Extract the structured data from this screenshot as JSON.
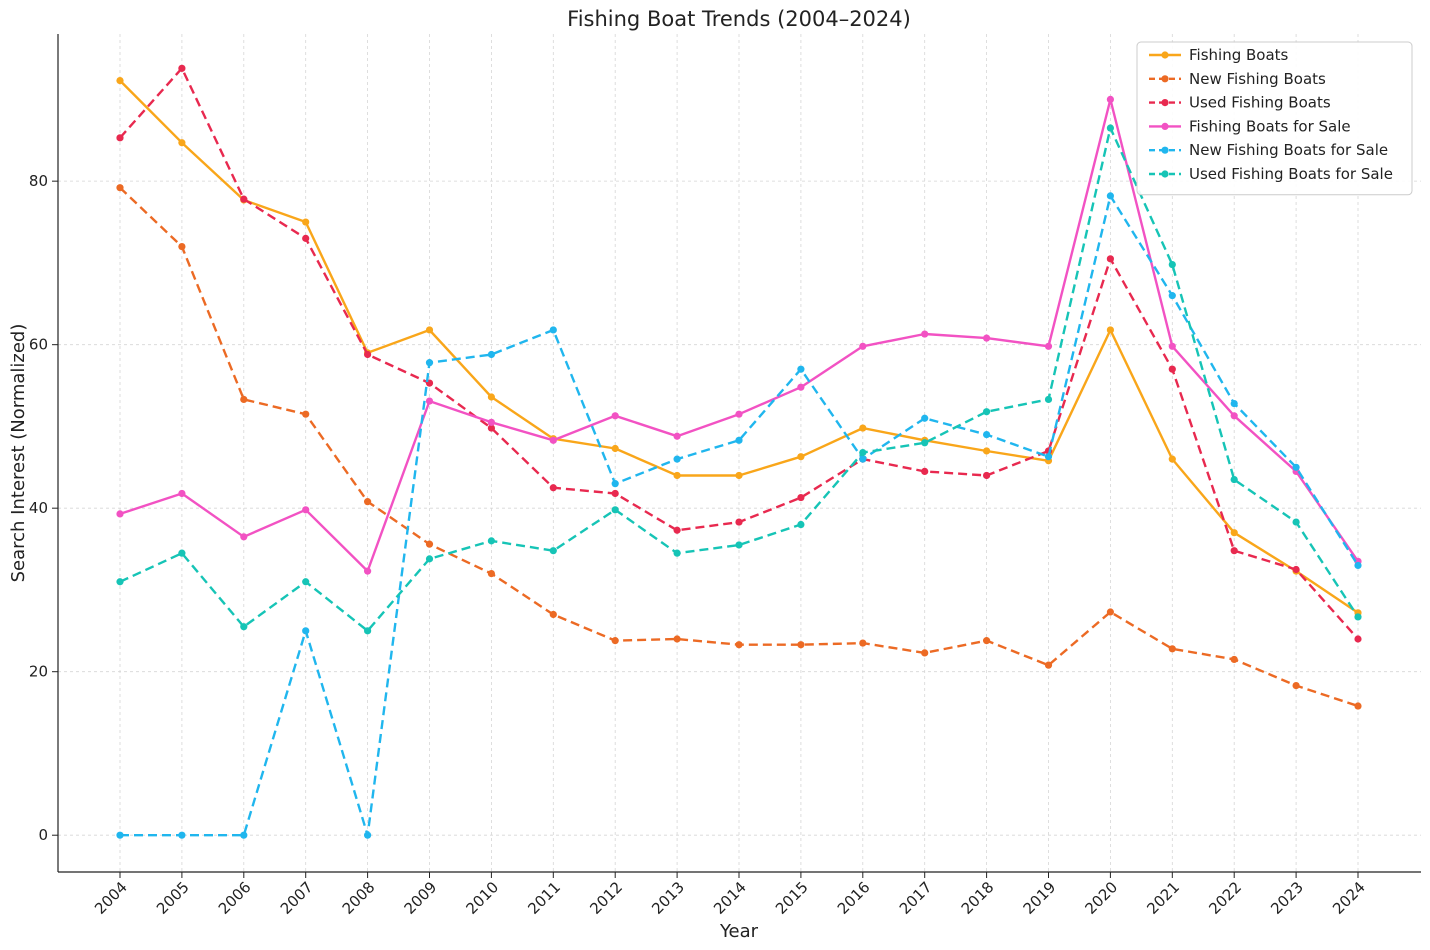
{
  "chart_data": {
    "type": "line",
    "title": "Fishing Boat Trends (2004–2024)",
    "xlabel": "Year",
    "ylabel": "Search Interest (Normalized)",
    "x": [
      "2004",
      "2005",
      "2006",
      "2007",
      "2008",
      "2009",
      "2010",
      "2011",
      "2012",
      "2013",
      "2014",
      "2015",
      "2016",
      "2017",
      "2018",
      "2019",
      "2020",
      "2021",
      "2022",
      "2023",
      "2024"
    ],
    "ylim": [
      -4.5,
      98
    ],
    "yticks": [
      0,
      20,
      40,
      60,
      80
    ],
    "grid": true,
    "legend_position": "top-right",
    "series": [
      {
        "name": "Fishing Boats",
        "color": "#f9a61a",
        "dashed": false,
        "values": [
          92.3,
          84.7,
          77.7,
          75,
          59,
          61.8,
          53.6,
          48.5,
          47.3,
          44,
          44,
          46.3,
          49.8,
          48.3,
          47,
          45.8,
          61.8,
          46,
          37,
          32.3,
          27.2
        ]
      },
      {
        "name": "New Fishing Boats",
        "color": "#ec6a24",
        "dashed": true,
        "values": [
          79.2,
          72,
          53.3,
          51.5,
          40.8,
          35.6,
          32,
          27,
          23.8,
          24,
          23.3,
          23.3,
          23.5,
          22.3,
          23.8,
          20.8,
          27.3,
          22.8,
          21.5,
          18.3,
          15.8
        ]
      },
      {
        "name": "Used Fishing Boats",
        "color": "#e8294f",
        "dashed": true,
        "values": [
          85.3,
          93.8,
          77.8,
          73,
          58.8,
          55.3,
          49.8,
          42.5,
          41.8,
          37.3,
          38.3,
          41.3,
          46,
          44.5,
          44,
          47,
          70.5,
          57,
          34.8,
          32.5,
          24
        ]
      },
      {
        "name": "Fishing Boats for Sale",
        "color": "#f252c3",
        "dashed": false,
        "values": [
          39.3,
          41.8,
          36.5,
          39.8,
          32.3,
          53.1,
          50.5,
          48.3,
          51.3,
          48.8,
          51.5,
          54.8,
          59.8,
          61.3,
          60.8,
          59.8,
          90,
          59.8,
          51.3,
          44.5,
          33.5
        ]
      },
      {
        "name": "New Fishing Boats for Sale",
        "color": "#20b6ee",
        "dashed": true,
        "values": [
          0,
          0,
          0,
          25,
          0,
          57.8,
          58.8,
          61.8,
          43,
          46,
          48.3,
          57,
          46,
          51,
          49,
          46.3,
          78.2,
          66,
          52.8,
          45,
          33
        ]
      },
      {
        "name": "Used Fishing Boats for Sale",
        "color": "#16c4b6",
        "dashed": true,
        "values": [
          31,
          34.5,
          25.5,
          31,
          25,
          33.8,
          36,
          34.8,
          39.8,
          34.5,
          35.5,
          38,
          46.8,
          48,
          51.8,
          53.3,
          86.5,
          69.8,
          43.5,
          38.3,
          26.7
        ]
      }
    ]
  }
}
